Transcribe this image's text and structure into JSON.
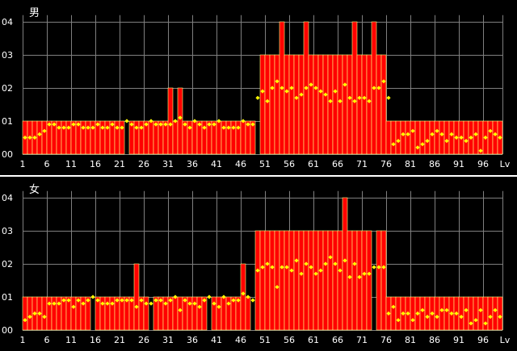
{
  "chart_data": [
    {
      "type": "bar",
      "title": "男",
      "xlabel": "Lv",
      "x_ticks": [
        "1",
        "6",
        "11",
        "16",
        "21",
        "26",
        "31",
        "36",
        "41",
        "46",
        "51",
        "56",
        "61",
        "66",
        "71",
        "76",
        "81",
        "86",
        "91",
        "96",
        "Lv"
      ],
      "y_ticks": [
        "00",
        "01",
        "02",
        "03",
        "04"
      ],
      "ylim": [
        0,
        4.2
      ],
      "categories": [
        1,
        2,
        3,
        4,
        5,
        6,
        7,
        8,
        9,
        10,
        11,
        12,
        13,
        14,
        15,
        16,
        17,
        18,
        19,
        20,
        21,
        22,
        23,
        24,
        25,
        26,
        27,
        28,
        29,
        30,
        31,
        32,
        33,
        34,
        35,
        36,
        37,
        38,
        39,
        40,
        41,
        42,
        43,
        44,
        45,
        46,
        47,
        48,
        49,
        50,
        51,
        52,
        53,
        54,
        55,
        56,
        57,
        58,
        59,
        60,
        61,
        62,
        63,
        64,
        65,
        66,
        67,
        68,
        69,
        70,
        71,
        72,
        73,
        74,
        75,
        76,
        77,
        78,
        79,
        80,
        81,
        82,
        83,
        84,
        85,
        86,
        87,
        88,
        89,
        90,
        91,
        92,
        93,
        94,
        95,
        96,
        97,
        98,
        99
      ],
      "series": [
        {
          "type": "bar",
          "color": "#ff0000",
          "values": [
            1,
            1,
            1,
            1,
            1,
            1,
            1,
            1,
            1,
            1,
            1,
            1,
            1,
            1,
            1,
            1,
            1,
            1,
            1,
            1,
            1,
            0,
            1,
            1,
            1,
            1,
            1,
            1,
            1,
            1,
            2,
            1,
            2,
            1,
            1,
            1,
            1,
            1,
            1,
            1,
            1,
            1,
            1,
            1,
            1,
            1,
            1,
            1,
            0,
            3,
            3,
            3,
            3,
            4,
            3,
            3,
            3,
            3,
            4,
            3,
            3,
            3,
            3,
            3,
            3,
            3,
            3,
            3,
            4,
            3,
            3,
            3,
            4,
            3,
            3,
            1,
            1,
            1,
            1,
            1,
            1,
            1,
            1,
            1,
            1,
            1,
            1,
            1,
            1,
            1,
            1,
            1,
            1,
            1,
            1,
            1,
            1,
            1,
            1
          ]
        },
        {
          "type": "scatter",
          "color": "#ffff00",
          "values": [
            0.5,
            0.5,
            0.5,
            0.6,
            0.7,
            0.9,
            0.9,
            0.8,
            0.8,
            0.8,
            0.9,
            0.9,
            0.8,
            0.8,
            0.8,
            0.9,
            0.8,
            0.8,
            0.9,
            0.8,
            0.8,
            1.0,
            0.9,
            0.8,
            0.8,
            0.9,
            1.0,
            0.9,
            0.9,
            0.9,
            0.9,
            1.0,
            1.1,
            0.9,
            0.8,
            1.0,
            0.9,
            0.8,
            0.9,
            0.9,
            1.0,
            0.8,
            0.8,
            0.8,
            0.8,
            1.0,
            0.9,
            0.9,
            1.7,
            1.9,
            1.6,
            2.0,
            2.2,
            2.0,
            1.9,
            2.0,
            1.7,
            1.8,
            2.0,
            2.1,
            2.0,
            1.9,
            1.8,
            1.6,
            1.9,
            1.6,
            2.1,
            1.7,
            1.6,
            1.7,
            1.7,
            1.6,
            2.0,
            2.0,
            2.2,
            1.7,
            0.3,
            0.4,
            0.6,
            0.6,
            0.7,
            0.2,
            0.3,
            0.4,
            0.6,
            0.7,
            0.6,
            0.4,
            0.6,
            0.5,
            0.5,
            0.4,
            0.5,
            0.6,
            0.1,
            0.5,
            0.7,
            0.6,
            0.5
          ]
        }
      ]
    },
    {
      "type": "bar",
      "title": "女",
      "xlabel": "Lv",
      "x_ticks": [
        "1",
        "6",
        "11",
        "16",
        "21",
        "26",
        "31",
        "36",
        "41",
        "46",
        "51",
        "56",
        "61",
        "66",
        "71",
        "76",
        "81",
        "86",
        "91",
        "96",
        "Lv"
      ],
      "y_ticks": [
        "00",
        "01",
        "02",
        "03",
        "04"
      ],
      "ylim": [
        0,
        4.2
      ],
      "categories": [
        1,
        2,
        3,
        4,
        5,
        6,
        7,
        8,
        9,
        10,
        11,
        12,
        13,
        14,
        15,
        16,
        17,
        18,
        19,
        20,
        21,
        22,
        23,
        24,
        25,
        26,
        27,
        28,
        29,
        30,
        31,
        32,
        33,
        34,
        35,
        36,
        37,
        38,
        39,
        40,
        41,
        42,
        43,
        44,
        45,
        46,
        47,
        48,
        49,
        50,
        51,
        52,
        53,
        54,
        55,
        56,
        57,
        58,
        59,
        60,
        61,
        62,
        63,
        64,
        65,
        66,
        67,
        68,
        69,
        70,
        71,
        72,
        73,
        74,
        75,
        76,
        77,
        78,
        79,
        80,
        81,
        82,
        83,
        84,
        85,
        86,
        87,
        88,
        89,
        90,
        91,
        92,
        93,
        94,
        95,
        96,
        97,
        98,
        99
      ],
      "series": [
        {
          "type": "bar",
          "color": "#ff0000",
          "values": [
            1,
            1,
            1,
            1,
            1,
            1,
            1,
            1,
            1,
            1,
            1,
            1,
            1,
            1,
            0,
            1,
            1,
            1,
            1,
            1,
            1,
            1,
            1,
            2,
            1,
            1,
            0,
            1,
            1,
            1,
            1,
            1,
            1,
            1,
            1,
            1,
            1,
            1,
            0,
            1,
            1,
            1,
            1,
            1,
            1,
            2,
            1,
            0,
            3,
            3,
            3,
            3,
            3,
            3,
            3,
            3,
            3,
            3,
            3,
            3,
            3,
            3,
            3,
            3,
            3,
            3,
            4,
            3,
            3,
            3,
            3,
            3,
            0,
            3,
            3,
            1,
            1,
            1,
            1,
            1,
            1,
            1,
            1,
            1,
            1,
            1,
            1,
            1,
            1,
            1,
            1,
            1,
            1,
            1,
            1,
            1,
            1,
            1,
            1
          ]
        },
        {
          "type": "scatter",
          "color": "#ffff00",
          "values": [
            0.3,
            0.4,
            0.5,
            0.5,
            0.4,
            0.8,
            0.8,
            0.8,
            0.9,
            0.9,
            0.7,
            0.9,
            0.8,
            0.9,
            1.0,
            0.9,
            0.8,
            0.8,
            0.8,
            0.9,
            0.9,
            0.9,
            0.9,
            0.7,
            0.9,
            0.8,
            0.8,
            0.9,
            0.9,
            0.8,
            0.9,
            1.0,
            0.6,
            0.9,
            0.8,
            0.8,
            0.7,
            0.9,
            1.0,
            0.8,
            0.7,
            1.0,
            0.8,
            0.9,
            0.9,
            1.1,
            1.0,
            0.9,
            1.8,
            1.9,
            2.0,
            1.9,
            1.3,
            1.9,
            1.9,
            1.8,
            2.1,
            1.7,
            2.0,
            1.9,
            1.7,
            1.8,
            2.0,
            2.2,
            2.0,
            1.8,
            2.1,
            1.6,
            2.0,
            1.6,
            1.7,
            1.7,
            1.9,
            1.9,
            1.9,
            0.5,
            0.7,
            0.3,
            0.5,
            0.5,
            0.3,
            0.5,
            0.6,
            0.4,
            0.5,
            0.4,
            0.6,
            0.6,
            0.5,
            0.5,
            0.4,
            0.6,
            0.2,
            0.3,
            0.6,
            0.2,
            0.4,
            0.6,
            0.4
          ]
        }
      ]
    }
  ]
}
